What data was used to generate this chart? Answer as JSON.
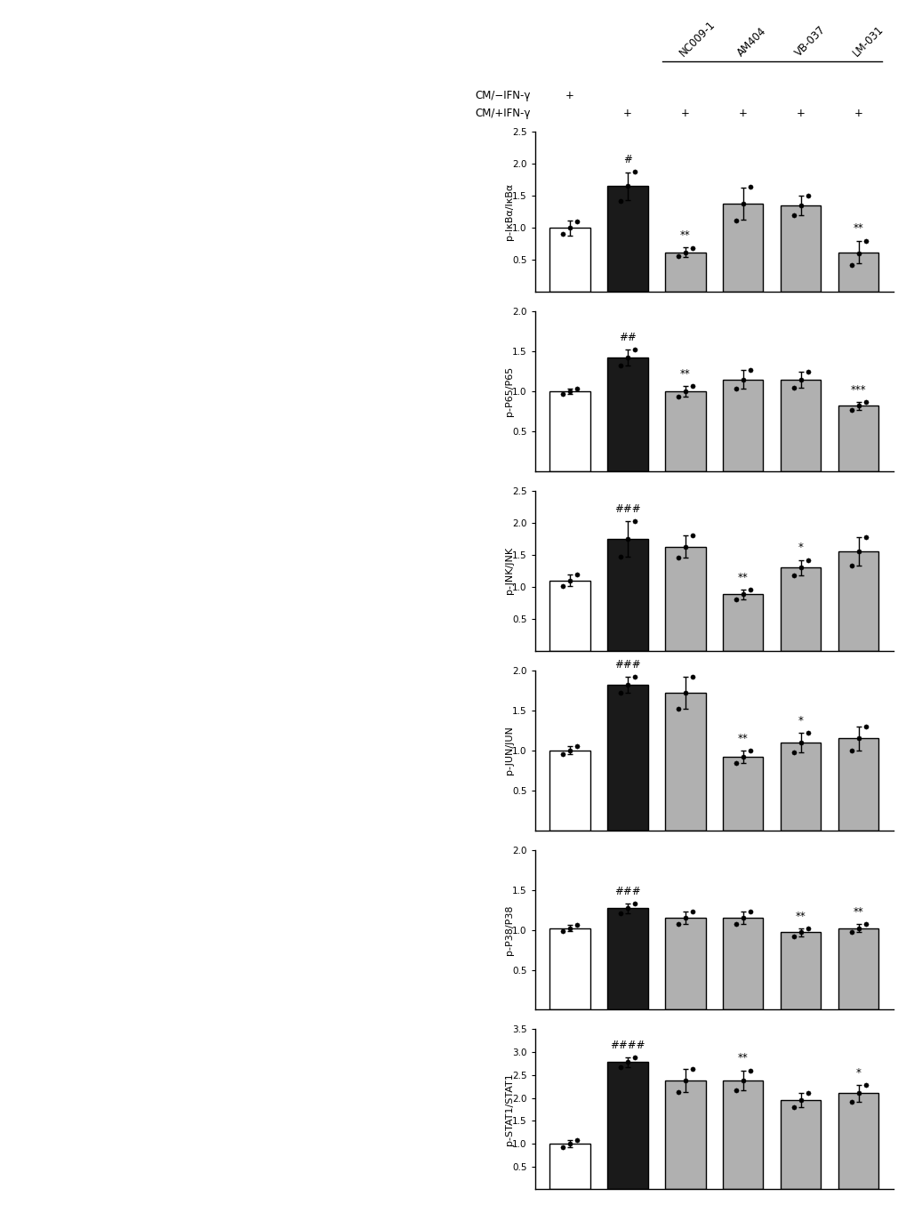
{
  "panels": [
    {
      "ylabel": "p-IκBα/IκBα",
      "ylim": [
        0,
        2.5
      ],
      "yticks": [
        0.5,
        1.0,
        1.5,
        2.0,
        2.5
      ],
      "bars": [
        1.0,
        1.65,
        0.62,
        1.38,
        1.35,
        0.62
      ],
      "errors": [
        0.12,
        0.22,
        0.08,
        0.25,
        0.15,
        0.18
      ],
      "significance": [
        "",
        "#",
        "**",
        "",
        "",
        "**"
      ],
      "colors": [
        "white",
        "black",
        "gray",
        "gray",
        "gray",
        "gray"
      ]
    },
    {
      "ylabel": "p-P65/P65",
      "ylim": [
        0,
        2.0
      ],
      "yticks": [
        0.5,
        1.0,
        1.5,
        2.0
      ],
      "bars": [
        1.0,
        1.42,
        1.0,
        1.15,
        1.15,
        0.82
      ],
      "errors": [
        0.03,
        0.1,
        0.07,
        0.12,
        0.1,
        0.05
      ],
      "significance": [
        "",
        "##",
        "**",
        "",
        "",
        "***"
      ],
      "colors": [
        "white",
        "black",
        "gray",
        "gray",
        "gray",
        "gray"
      ]
    },
    {
      "ylabel": "p-JNK/JNK",
      "ylim": [
        0,
        2.5
      ],
      "yticks": [
        0.5,
        1.0,
        1.5,
        2.0,
        2.5
      ],
      "bars": [
        1.1,
        1.75,
        1.63,
        0.88,
        1.3,
        1.55
      ],
      "errors": [
        0.09,
        0.28,
        0.18,
        0.07,
        0.12,
        0.22
      ],
      "significance": [
        "",
        "###",
        "",
        "**",
        "*",
        ""
      ],
      "colors": [
        "white",
        "black",
        "gray",
        "gray",
        "gray",
        "gray"
      ]
    },
    {
      "ylabel": "p-JUN/JUN",
      "ylim": [
        0,
        2.0
      ],
      "yticks": [
        0.5,
        1.0,
        1.5,
        2.0
      ],
      "bars": [
        1.0,
        1.82,
        1.72,
        0.92,
        1.1,
        1.15
      ],
      "errors": [
        0.05,
        0.1,
        0.2,
        0.08,
        0.12,
        0.15
      ],
      "significance": [
        "",
        "###",
        "",
        "**",
        "*",
        ""
      ],
      "colors": [
        "white",
        "black",
        "gray",
        "gray",
        "gray",
        "gray"
      ]
    },
    {
      "ylabel": "p-P38/P38",
      "ylim": [
        0,
        2.0
      ],
      "yticks": [
        0.5,
        1.0,
        1.5,
        2.0
      ],
      "bars": [
        1.02,
        1.27,
        1.15,
        1.15,
        0.97,
        1.02
      ],
      "errors": [
        0.04,
        0.06,
        0.08,
        0.08,
        0.05,
        0.05
      ],
      "significance": [
        "",
        "###",
        "",
        "",
        "**",
        "**"
      ],
      "colors": [
        "white",
        "black",
        "gray",
        "gray",
        "gray",
        "gray"
      ]
    },
    {
      "ylabel": "p-STAT1/STAT1",
      "ylim": [
        0,
        3.5
      ],
      "yticks": [
        0.5,
        1.0,
        1.5,
        2.0,
        2.5,
        3.0,
        3.5
      ],
      "bars": [
        1.0,
        2.78,
        2.38,
        2.38,
        1.95,
        2.1
      ],
      "errors": [
        0.07,
        0.1,
        0.25,
        0.22,
        0.15,
        0.18
      ],
      "significance": [
        "",
        "####",
        "",
        "**",
        "",
        "*"
      ],
      "colors": [
        "white",
        "black",
        "gray",
        "gray",
        "gray",
        "gray"
      ]
    }
  ],
  "bar_width": 0.7,
  "compound_labels": [
    "NC009-1",
    "AM404",
    "VB-037",
    "LM-031"
  ],
  "gray_color": "#b0b0b0",
  "dark_color": "#1a1a1a",
  "edgecolor": "black",
  "scatter_color": "black",
  "scatter_size": 14,
  "errorbar_capsize": 2.5,
  "errorbar_linewidth": 1.0,
  "bar_edgewidth": 1.0,
  "sig_fontsize": 8.5,
  "ylabel_fontsize": 8,
  "tick_fontsize": 7.5,
  "header_fontsize": 8.5
}
